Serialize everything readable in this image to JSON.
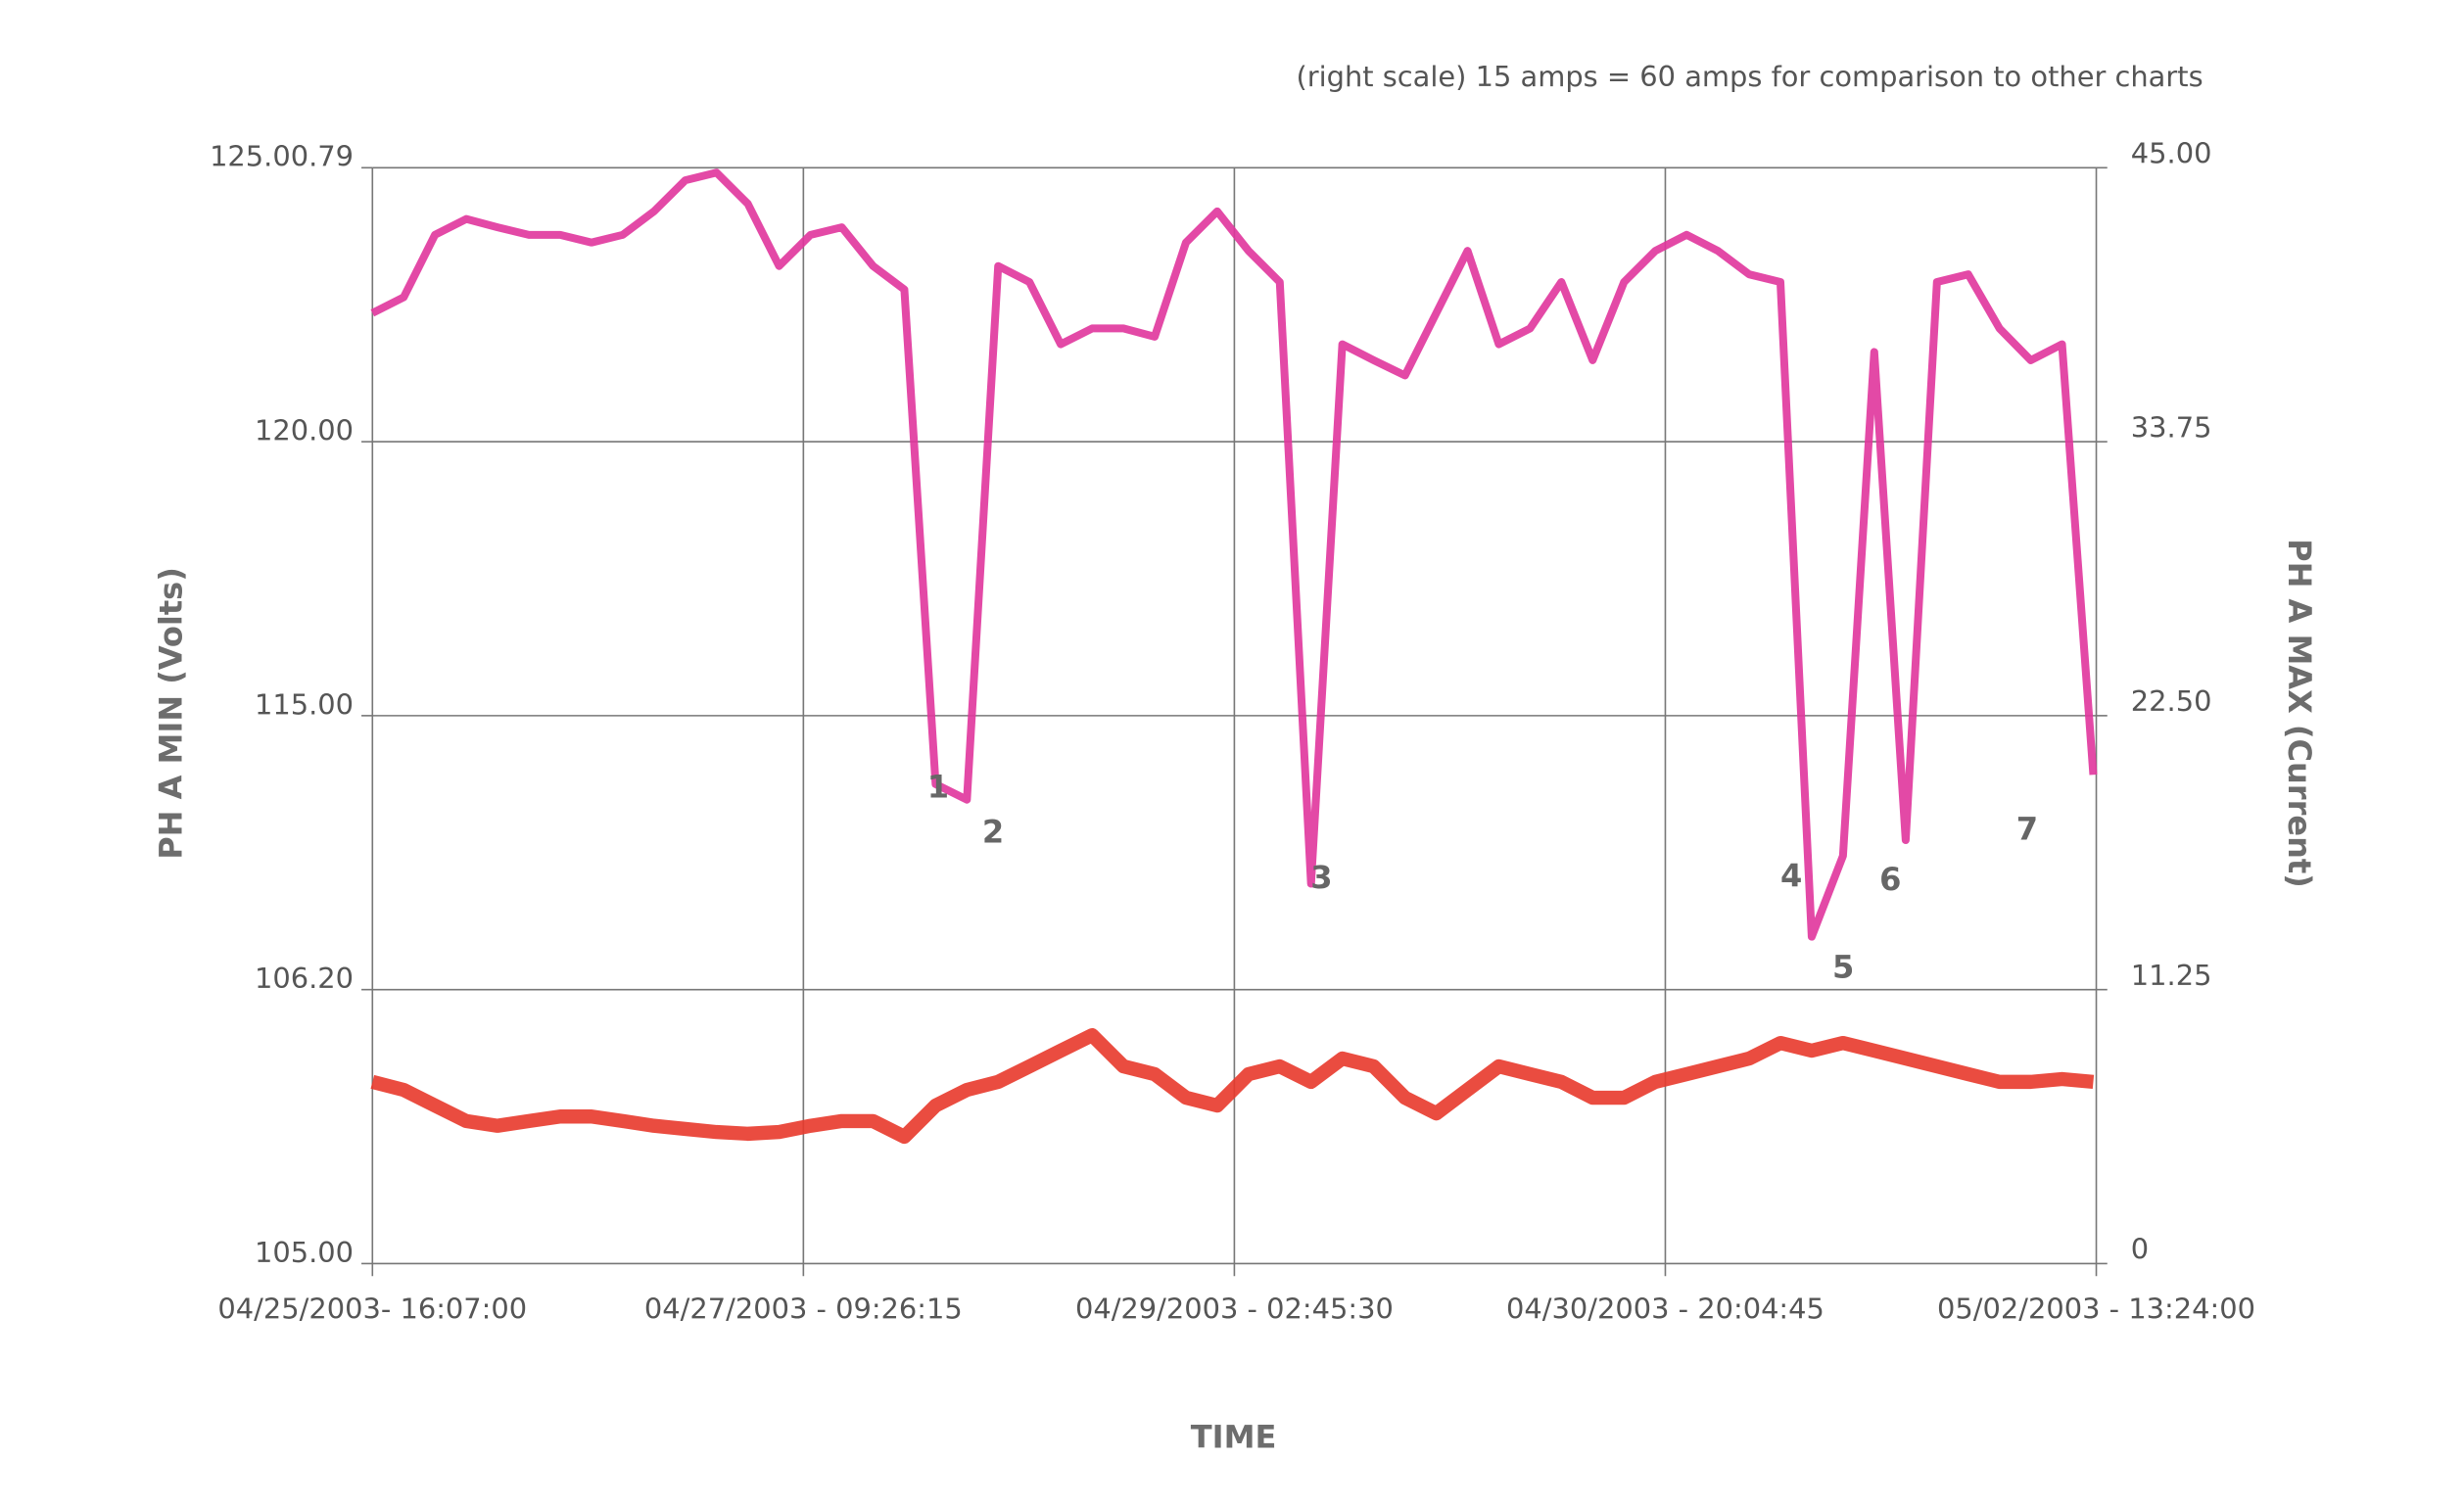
{
  "chart_data": {
    "type": "line",
    "title": "(right scale) 15 amps = 60 amps for comparison to other charts",
    "x_label": "TIME",
    "y_label": "PH A MIN (Volts)",
    "y2_label": "PH A MAX (Current)",
    "grid": true,
    "yscale": "piecewise",
    "x": [
      "2003-04-25T16:07",
      "2003-04-25T19:07",
      "2003-04-25T22:07",
      "2003-04-26T01:07",
      "2003-04-26T04:07",
      "2003-04-26T07:07",
      "2003-04-26T10:07",
      "2003-04-26T13:07",
      "2003-04-26T16:07",
      "2003-04-26T19:07",
      "2003-04-26T22:07",
      "2003-04-27T01:07",
      "2003-04-27T04:07",
      "2003-04-27T07:07",
      "2003-04-27T10:07",
      "2003-04-27T13:07",
      "2003-04-27T16:07",
      "2003-04-27T19:07",
      "2003-04-27T22:07",
      "2003-04-28T01:07",
      "2003-04-28T04:07",
      "2003-04-28T07:07",
      "2003-04-28T10:07",
      "2003-04-28T13:07",
      "2003-04-28T16:07",
      "2003-04-28T19:07",
      "2003-04-28T22:07",
      "2003-04-29T01:07",
      "2003-04-29T04:07",
      "2003-04-29T07:07",
      "2003-04-29T10:07",
      "2003-04-29T13:07",
      "2003-04-29T16:07",
      "2003-04-29T19:07",
      "2003-04-29T22:07",
      "2003-04-30T01:07",
      "2003-04-30T04:07",
      "2003-04-30T07:07",
      "2003-04-30T10:07",
      "2003-04-30T13:07",
      "2003-04-30T16:07",
      "2003-04-30T19:07",
      "2003-04-30T22:07",
      "2003-05-01T01:07",
      "2003-05-01T04:07",
      "2003-05-01T07:07",
      "2003-05-01T10:07",
      "2003-05-01T13:07",
      "2003-05-01T16:07",
      "2003-05-01T19:07",
      "2003-05-01T22:07",
      "2003-05-02T01:07",
      "2003-05-02T04:07",
      "2003-05-02T07:07",
      "2003-05-02T10:07",
      "2003-05-02T13:07"
    ],
    "xlim": [
      "2003-04-25T16:07:00",
      "2003-05-02T13:24:00"
    ],
    "xticks": [
      {
        "value": "2003-04-25T16:07:00",
        "label": "04/25/2003- 16:07:00"
      },
      {
        "value": "2003-04-27T09:26:15",
        "label": "04/27/2003 - 09:26:15"
      },
      {
        "value": "2003-04-29T02:45:30",
        "label": "04/29/2003 - 02:45:30"
      },
      {
        "value": "2003-04-30T20:04:45",
        "label": "04/30/2003 - 20:04:45"
      },
      {
        "value": "2003-05-02T13:24:00",
        "label": "05/02/2003 - 13:24:00"
      }
    ],
    "ylim": [
      105,
      125.0079
    ],
    "yticks": [
      {
        "value": 105,
        "label": "105.00"
      },
      {
        "value": 106.2,
        "label": "106.20"
      },
      {
        "value": 115,
        "label": "115.00"
      },
      {
        "value": 120,
        "label": "120.00"
      },
      {
        "value": 125.0079,
        "label": "125.00.79"
      }
    ],
    "y2lim": [
      0,
      45
    ],
    "y2ticks": [
      0,
      11.25,
      {
        "value": 22.5,
        "label": "22.50"
      },
      33.75,
      {
        "value": 45,
        "label": "45.00"
      }
    ],
    "series": [
      {
        "name": "PH A MIN (Volts)",
        "color": "#e0359c",
        "values": [
          122.35,
          122.64,
          123.78,
          124.07,
          123.92,
          123.78,
          123.78,
          123.64,
          123.78,
          124.21,
          124.78,
          124.92,
          124.35,
          123.21,
          123.78,
          123.92,
          123.21,
          122.78,
          112.8,
          112.3,
          123.21,
          122.92,
          121.78,
          122.07,
          122.07,
          121.92,
          123.64,
          124.21,
          123.49,
          122.92,
          109.6,
          121.78,
          121.49,
          121.21,
          122.35,
          123.49,
          121.78,
          122.07,
          122.92,
          121.49,
          122.92,
          123.49,
          123.78,
          123.49,
          123.06,
          122.92,
          107.9,
          110.5,
          121.64,
          111.0,
          122.92,
          123.06,
          122.07,
          121.49,
          121.78,
          113.1
        ]
      },
      {
        "name": "PH A MAX (Current)",
        "color": "#e8392b",
        "axis": "y2",
        "values": [
          7.46,
          7.13,
          6.49,
          5.85,
          5.66,
          5.85,
          6.04,
          6.04,
          5.85,
          5.66,
          5.53,
          5.4,
          5.33,
          5.4,
          5.66,
          5.85,
          5.85,
          5.21,
          6.49,
          7.13,
          7.46,
          8.1,
          8.74,
          9.38,
          8.1,
          7.78,
          6.81,
          6.49,
          7.78,
          8.1,
          7.46,
          8.42,
          8.1,
          6.81,
          6.17,
          7.13,
          8.1,
          7.78,
          7.46,
          6.81,
          6.81,
          7.46,
          7.78,
          8.1,
          8.42,
          9.06,
          8.74,
          9.06,
          8.74,
          8.42,
          8.1,
          7.78,
          7.46,
          7.46,
          7.58,
          7.46
        ]
      }
    ],
    "annotations": [
      "1",
      "2",
      "3",
      "4",
      "5",
      "6",
      "7"
    ]
  }
}
